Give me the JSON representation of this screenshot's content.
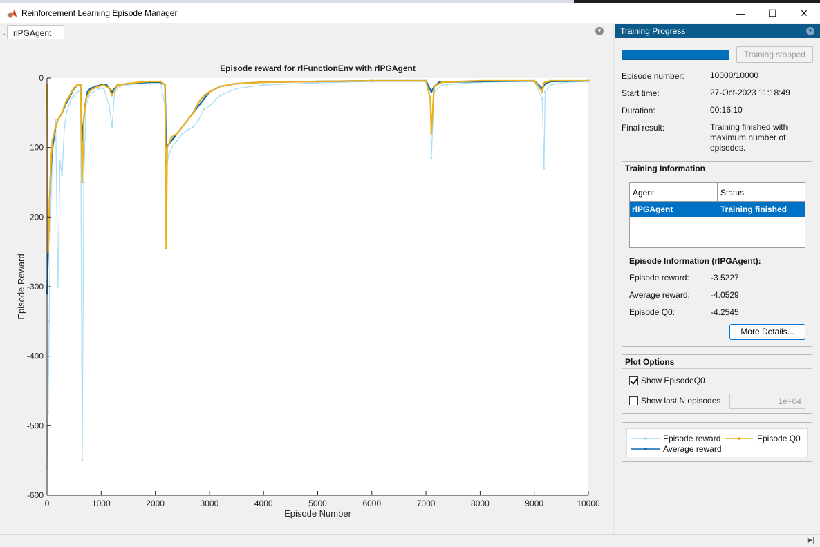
{
  "window": {
    "title": "Reinforcement Learning Episode Manager",
    "minimize_glyph": "—",
    "maximize_glyph": "☐",
    "close_glyph": "✕"
  },
  "doc_tab": {
    "label": "rlPGAgent"
  },
  "chart_data": {
    "type": "line",
    "title": "Episode reward for rlFunctionEnv with rlPGAgent",
    "xlabel": "Episode Number",
    "ylabel": "Episode Reward",
    "xlim": [
      0,
      10000
    ],
    "ylim": [
      -600,
      0
    ],
    "xticks": [
      0,
      1000,
      2000,
      3000,
      4000,
      5000,
      6000,
      7000,
      8000,
      9000,
      10000
    ],
    "yticks": [
      0,
      -100,
      -200,
      -300,
      -400,
      -500,
      -600
    ],
    "grid": false,
    "legend_placement": "side panel",
    "series": [
      {
        "name": "Episode reward",
        "color": "#a8dcf7",
        "x": [
          0,
          20,
          40,
          60,
          80,
          100,
          130,
          160,
          200,
          240,
          280,
          320,
          360,
          400,
          450,
          500,
          560,
          620,
          650,
          680,
          720,
          780,
          850,
          950,
          1050,
          1150,
          1200,
          1250,
          1350,
          1500,
          1700,
          1900,
          2100,
          2180,
          2200,
          2250,
          2300,
          2400,
          2500,
          2600,
          2700,
          2800,
          2900,
          3000,
          3200,
          3500,
          4000,
          5000,
          6000,
          7000,
          7080,
          7100,
          7150,
          7300,
          8000,
          9000,
          9150,
          9180,
          9200,
          9300,
          9600,
          10000
        ],
        "y": [
          -560,
          -480,
          -350,
          -220,
          -160,
          -120,
          -80,
          -60,
          -300,
          -120,
          -140,
          -70,
          -50,
          -40,
          -30,
          -25,
          -20,
          -18,
          -550,
          -150,
          -40,
          -25,
          -20,
          -15,
          -15,
          -40,
          -70,
          -20,
          -12,
          -10,
          -8,
          -8,
          -8,
          -40,
          -130,
          -110,
          -100,
          -90,
          -80,
          -75,
          -70,
          -60,
          -45,
          -40,
          -25,
          -15,
          -10,
          -7,
          -5,
          -5,
          -30,
          -115,
          -20,
          -10,
          -6,
          -5,
          -30,
          -130,
          -20,
          -10,
          -6,
          -5
        ]
      },
      {
        "name": "Average reward",
        "color": "#0b6aa8",
        "x": [
          0,
          20,
          40,
          60,
          80,
          100,
          130,
          160,
          200,
          240,
          280,
          320,
          360,
          400,
          450,
          500,
          560,
          620,
          650,
          700,
          750,
          800,
          900,
          1000,
          1100,
          1150,
          1200,
          1300,
          1500,
          1700,
          1900,
          2100,
          2180,
          2200,
          2250,
          2350,
          2500,
          2700,
          2900,
          3000,
          3200,
          3500,
          4000,
          5000,
          6000,
          7000,
          7100,
          7150,
          7250,
          8000,
          9000,
          9150,
          9200,
          9300,
          10000
        ],
        "y": [
          -310,
          -250,
          -200,
          -150,
          -120,
          -100,
          -85,
          -70,
          -60,
          -55,
          -50,
          -42,
          -35,
          -30,
          -22,
          -15,
          -10,
          -10,
          -90,
          -40,
          -20,
          -15,
          -12,
          -10,
          -10,
          -15,
          -20,
          -10,
          -8,
          -7,
          -6,
          -6,
          -10,
          -100,
          -95,
          -85,
          -70,
          -50,
          -30,
          -20,
          -12,
          -8,
          -6,
          -5,
          -4,
          -4,
          -20,
          -12,
          -6,
          -5,
          -4,
          -15,
          -8,
          -5,
          -4
        ]
      },
      {
        "name": "Episode Q0",
        "color": "#edb120",
        "x": [
          0,
          20,
          40,
          60,
          80,
          100,
          130,
          160,
          200,
          240,
          280,
          320,
          360,
          400,
          450,
          500,
          560,
          620,
          650,
          680,
          720,
          780,
          850,
          950,
          1050,
          1150,
          1200,
          1300,
          1500,
          1700,
          1900,
          2100,
          2180,
          2200,
          2220,
          2250,
          2300,
          2400,
          2500,
          2600,
          2700,
          2800,
          2900,
          3000,
          3200,
          3500,
          4000,
          5000,
          6000,
          7000,
          7080,
          7100,
          7150,
          7300,
          8000,
          9000,
          9150,
          9170,
          9200,
          9300,
          10000
        ],
        "y": [
          -10,
          -250,
          -200,
          -150,
          -110,
          -90,
          -80,
          -70,
          -60,
          -55,
          -50,
          -40,
          -32,
          -28,
          -20,
          -14,
          -10,
          -10,
          -150,
          -60,
          -30,
          -20,
          -15,
          -12,
          -10,
          -15,
          -25,
          -10,
          -8,
          -6,
          -5,
          -5,
          -10,
          -245,
          -100,
          -95,
          -85,
          -80,
          -70,
          -60,
          -50,
          -35,
          -25,
          -20,
          -12,
          -8,
          -6,
          -5,
          -4,
          -4,
          -30,
          -80,
          -12,
          -6,
          -4,
          -4,
          -20,
          -8,
          -6,
          -4,
          -4
        ]
      }
    ]
  },
  "training_progress": {
    "header": "Training Progress",
    "progress_fraction": 1.0,
    "progress_color": "#0072bd",
    "stop_button_label": "Training stopped",
    "episode_number_label": "Episode number:",
    "episode_number_value": "10000/10000",
    "start_time_label": "Start time:",
    "start_time_value": "27-Oct-2023 11:18:49",
    "duration_label": "Duration:",
    "duration_value": "00:16:10",
    "final_result_label": "Final result:",
    "final_result_value": "Training finished with maximum number of episodes."
  },
  "training_information": {
    "title": "Training Information",
    "columns": [
      "Agent",
      "Status"
    ],
    "rows": [
      {
        "agent": "rlPGAgent",
        "status": "Training finished"
      }
    ],
    "episode_info_title": "Episode Information (rlPGAgent):",
    "episode_reward_label": "Episode reward:",
    "episode_reward_value": "-3.5227",
    "average_reward_label": "Average reward:",
    "average_reward_value": "-4.0529",
    "episode_q0_label": "Episode Q0:",
    "episode_q0_value": "-4.2545",
    "more_details_label": "More Details..."
  },
  "plot_options": {
    "title": "Plot Options",
    "show_episode_q0_label": "Show EpisodeQ0",
    "show_episode_q0_checked": true,
    "show_last_n_label": "Show last N episodes",
    "show_last_n_checked": false,
    "last_n_value": "1e+04"
  },
  "legend": {
    "episode_reward": "Episode reward",
    "episode_q0": "Episode Q0",
    "average_reward": "Average reward"
  }
}
